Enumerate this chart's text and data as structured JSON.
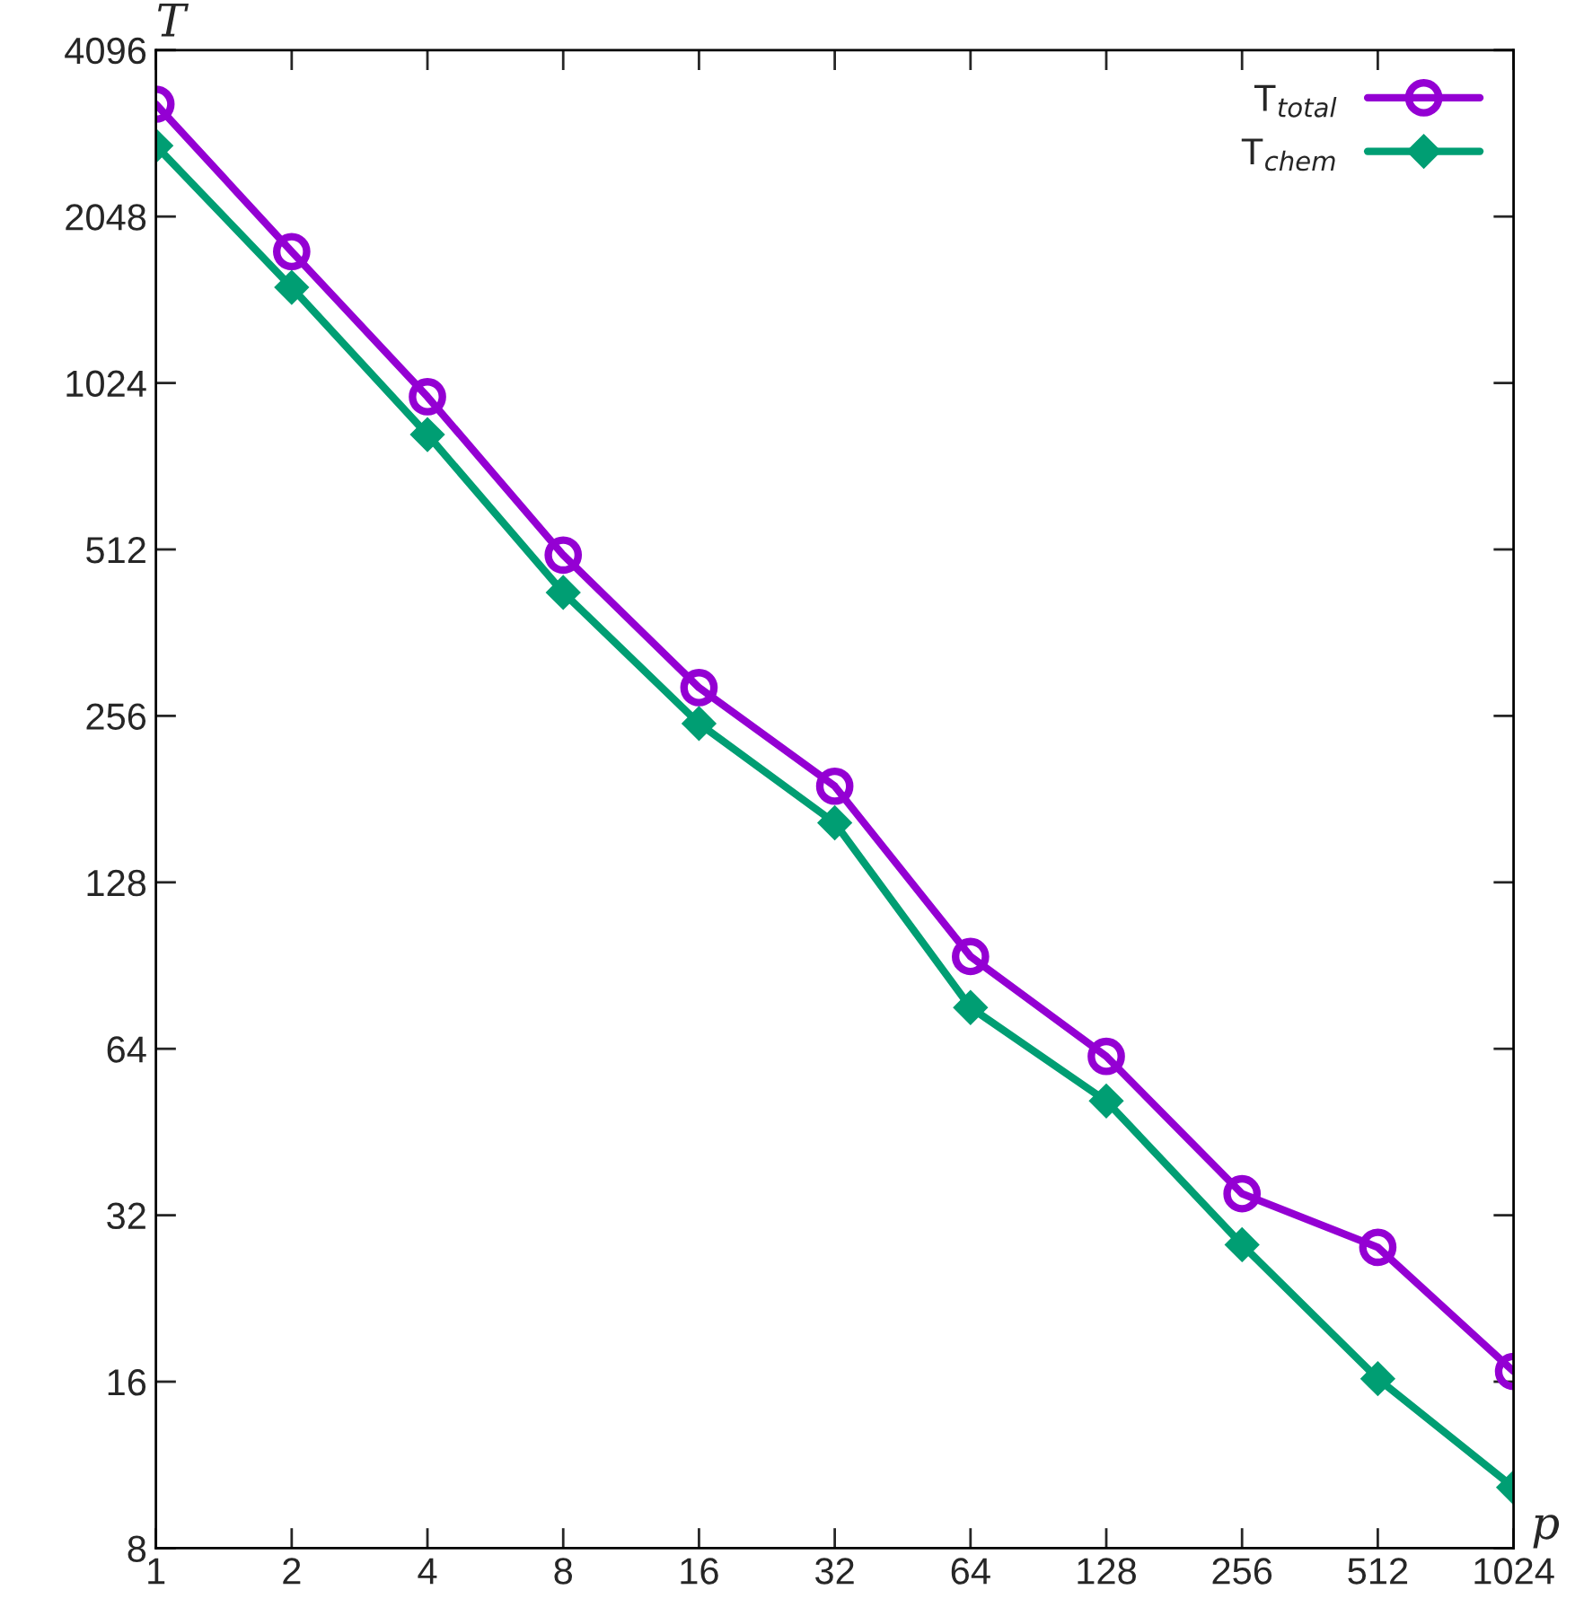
{
  "chart_data": {
    "type": "line",
    "xlabel": "p",
    "ylabel": "T",
    "log": "xy",
    "x": [
      1,
      2,
      4,
      8,
      16,
      32,
      64,
      128,
      256,
      512,
      1024
    ],
    "xlim": [
      1,
      1024
    ],
    "xticks": [
      1,
      2,
      4,
      8,
      16,
      32,
      64,
      128,
      256,
      512,
      1024
    ],
    "ylim": [
      8,
      4096
    ],
    "yticks": [
      8,
      16,
      32,
      64,
      128,
      256,
      512,
      1024,
      2048,
      4096
    ],
    "grid": false,
    "legend": "top right",
    "series": [
      {
        "name": "T$_{total}$",
        "color": "#9400d3",
        "marker": "circle",
        "values": [
          3270,
          1770,
          967,
          500,
          288,
          191,
          94,
          62,
          35,
          28,
          16.7
        ]
      },
      {
        "name": "T$_{chem}$",
        "color": "#009e73",
        "marker": "diamond",
        "values": [
          2750,
          1525,
          826,
          428,
          248,
          164,
          76,
          51.5,
          28.3,
          16.2,
          10.3
        ]
      }
    ]
  }
}
